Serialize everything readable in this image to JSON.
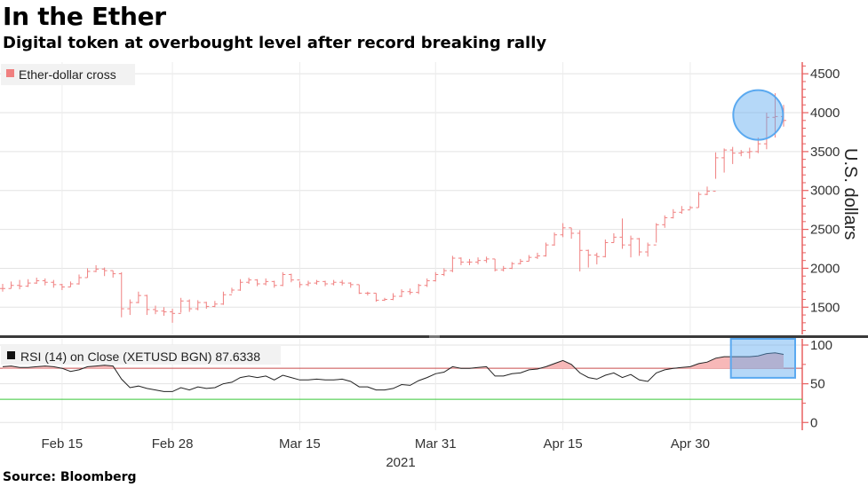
{
  "header": {
    "title": "In the Ether",
    "subtitle": "Digital token at overbought level after record breaking rally"
  },
  "footer": {
    "source": "Source: Bloomberg"
  },
  "chart_data": [
    {
      "type": "line",
      "subtype": "ohlc",
      "title": "",
      "legend": {
        "label": "Ether-dollar cross",
        "position": "top-left"
      },
      "ylabel": "U.S. dollars",
      "ylim": [
        1150,
        4650
      ],
      "yticks": [
        1500,
        2000,
        2500,
        3000,
        3500,
        4000,
        4500
      ],
      "y_axis_side": "right",
      "grid": true,
      "series_color": "#f08080",
      "dates": [
        "Feb 8",
        "Feb 9",
        "Feb 10",
        "Feb 11",
        "Feb 12",
        "Feb 13",
        "Feb 14",
        "Feb 15",
        "Feb 16",
        "Feb 17",
        "Feb 18",
        "Feb 19",
        "Feb 20",
        "Feb 21",
        "Feb 22",
        "Feb 23",
        "Feb 24",
        "Feb 25",
        "Feb 26",
        "Feb 27",
        "Feb 28",
        "Mar 1",
        "Mar 2",
        "Mar 3",
        "Mar 4",
        "Mar 5",
        "Mar 6",
        "Mar 7",
        "Mar 8",
        "Mar 9",
        "Mar 10",
        "Mar 11",
        "Mar 12",
        "Mar 13",
        "Mar 14",
        "Mar 15",
        "Mar 16",
        "Mar 17",
        "Mar 18",
        "Mar 19",
        "Mar 20",
        "Mar 21",
        "Mar 22",
        "Mar 23",
        "Mar 24",
        "Mar 25",
        "Mar 26",
        "Mar 27",
        "Mar 28",
        "Mar 29",
        "Mar 30",
        "Mar 31",
        "Apr 1",
        "Apr 2",
        "Apr 3",
        "Apr 4",
        "Apr 5",
        "Apr 6",
        "Apr 7",
        "Apr 8",
        "Apr 9",
        "Apr 10",
        "Apr 11",
        "Apr 12",
        "Apr 13",
        "Apr 14",
        "Apr 15",
        "Apr 16",
        "Apr 17",
        "Apr 18",
        "Apr 19",
        "Apr 20",
        "Apr 21",
        "Apr 22",
        "Apr 23",
        "Apr 24",
        "Apr 25",
        "Apr 26",
        "Apr 27",
        "Apr 28",
        "Apr 29",
        "Apr 30",
        "May 1",
        "May 2",
        "May 3",
        "May 4",
        "May 5",
        "May 6",
        "May 7",
        "May 8",
        "May 9",
        "May 10",
        "May 11"
      ],
      "close": [
        1740,
        1780,
        1770,
        1810,
        1840,
        1820,
        1790,
        1760,
        1800,
        1880,
        1960,
        1990,
        1970,
        1930,
        1480,
        1560,
        1650,
        1470,
        1450,
        1440,
        1420,
        1580,
        1480,
        1560,
        1510,
        1540,
        1660,
        1720,
        1820,
        1850,
        1800,
        1830,
        1780,
        1920,
        1850,
        1790,
        1810,
        1830,
        1800,
        1820,
        1810,
        1790,
        1680,
        1680,
        1590,
        1600,
        1640,
        1700,
        1690,
        1780,
        1840,
        1920,
        1970,
        2130,
        2080,
        2080,
        2100,
        2120,
        1980,
        2000,
        2060,
        2090,
        2140,
        2160,
        2300,
        2430,
        2520,
        2450,
        2230,
        2170,
        2150,
        2330,
        2400,
        2300,
        2380,
        2210,
        2300,
        2560,
        2650,
        2720,
        2750,
        2780,
        2950,
        2990,
        3420,
        3520,
        3480,
        3490,
        3500,
        3600,
        3940,
        3950,
        3900
      ],
      "high": [
        1800,
        1830,
        1850,
        1860,
        1880,
        1870,
        1850,
        1800,
        1830,
        1920,
        2000,
        2040,
        2010,
        1970,
        1950,
        1600,
        1700,
        1660,
        1520,
        1500,
        1480,
        1620,
        1600,
        1590,
        1570,
        1580,
        1700,
        1750,
        1860,
        1880,
        1860,
        1870,
        1840,
        1950,
        1930,
        1830,
        1840,
        1850,
        1840,
        1850,
        1850,
        1820,
        1790,
        1700,
        1680,
        1620,
        1680,
        1730,
        1740,
        1800,
        1870,
        1950,
        2000,
        2160,
        2140,
        2120,
        2140,
        2150,
        2120,
        2030,
        2080,
        2120,
        2170,
        2200,
        2330,
        2460,
        2580,
        2520,
        2490,
        2240,
        2200,
        2370,
        2450,
        2640,
        2420,
        2390,
        2330,
        2580,
        2680,
        2760,
        2800,
        2800,
        2980,
        3050,
        3490,
        3540,
        3560,
        3520,
        3550,
        3680,
        4000,
        4250,
        4100
      ],
      "low": [
        1700,
        1740,
        1730,
        1760,
        1800,
        1780,
        1750,
        1720,
        1760,
        1790,
        1880,
        1950,
        1900,
        1880,
        1370,
        1400,
        1550,
        1400,
        1410,
        1390,
        1300,
        1430,
        1440,
        1460,
        1480,
        1500,
        1530,
        1680,
        1710,
        1800,
        1770,
        1780,
        1750,
        1770,
        1820,
        1750,
        1770,
        1790,
        1770,
        1780,
        1780,
        1750,
        1670,
        1650,
        1570,
        1580,
        1590,
        1630,
        1660,
        1670,
        1760,
        1830,
        1900,
        1950,
        2040,
        2040,
        2050,
        2070,
        1960,
        1960,
        1990,
        2050,
        2090,
        2120,
        2150,
        2290,
        2400,
        2380,
        1960,
        2010,
        2050,
        2140,
        2330,
        2250,
        2140,
        2160,
        2150,
        2330,
        2520,
        2640,
        2700,
        2760,
        2780,
        2940,
        3150,
        3230,
        3340,
        3440,
        3410,
        3480,
        3530,
        3680,
        3820
      ]
    },
    {
      "type": "line",
      "title": "",
      "legend": {
        "label": "RSI (14)  on Close (XETUSD BGN) 87.6338",
        "position": "top-left"
      },
      "ylim": [
        -10,
        108
      ],
      "yticks": [
        0,
        50,
        100
      ],
      "y_axis_side": "right",
      "reference_lines": [
        {
          "value": 70,
          "color": "#c94c4c"
        },
        {
          "value": 30,
          "color": "#37c837"
        }
      ],
      "values": [
        72,
        73,
        71,
        71,
        72,
        73,
        72,
        70,
        66,
        68,
        72,
        73,
        74,
        73,
        56,
        45,
        47,
        44,
        42,
        40,
        40,
        45,
        42,
        46,
        44,
        45,
        50,
        52,
        58,
        60,
        58,
        60,
        55,
        61,
        58,
        55,
        55,
        56,
        55,
        55,
        56,
        53,
        46,
        46,
        42,
        42,
        44,
        49,
        48,
        54,
        58,
        63,
        65,
        72,
        70,
        70,
        71,
        72,
        60,
        60,
        63,
        64,
        68,
        69,
        72,
        76,
        80,
        75,
        64,
        58,
        56,
        61,
        64,
        58,
        62,
        55,
        53,
        64,
        68,
        70,
        71,
        72,
        76,
        78,
        83,
        85,
        85,
        85,
        85,
        86,
        89,
        90,
        88
      ]
    }
  ],
  "x_axis": {
    "tick_labels": [
      "Feb 15",
      "Feb 28",
      "Mar 15",
      "Mar 31",
      "Apr 15",
      "Apr 30"
    ],
    "year_label": "2021"
  },
  "annotations": {
    "highlight_color": "#5aa9f0"
  }
}
